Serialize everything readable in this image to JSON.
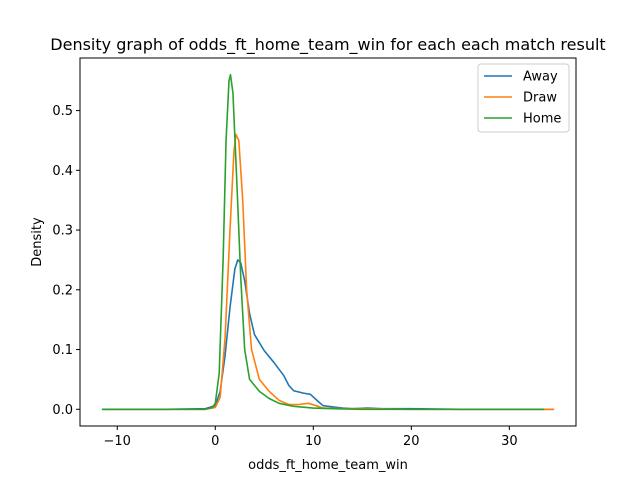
{
  "chart_data": {
    "type": "line",
    "title": "Density graph of odds_ft_home_team_win for each each match result",
    "xlabel": "odds_ft_home_team_win",
    "ylabel": "Density",
    "xlim": [
      -13.8,
      36.8
    ],
    "ylim": [
      -0.028,
      0.588
    ],
    "xticks": [
      -10,
      0,
      10,
      20,
      30
    ],
    "yticks": [
      0.0,
      0.1,
      0.2,
      0.3,
      0.4,
      0.5
    ],
    "xtick_labels": [
      "−10",
      "0",
      "10",
      "20",
      "30"
    ],
    "ytick_labels": [
      "0.0",
      "0.1",
      "0.2",
      "0.3",
      "0.4",
      "0.5"
    ],
    "grid": false,
    "legend_position": "top-right",
    "series": [
      {
        "name": "Away",
        "color": "#1f77b4",
        "points": [
          [
            -11.5,
            0.0
          ],
          [
            -5,
            0.0
          ],
          [
            -1,
            0.001
          ],
          [
            0,
            0.006
          ],
          [
            0.5,
            0.03
          ],
          [
            1,
            0.09
          ],
          [
            1.5,
            0.17
          ],
          [
            2,
            0.235
          ],
          [
            2.3,
            0.25
          ],
          [
            2.6,
            0.245
          ],
          [
            3,
            0.215
          ],
          [
            3.5,
            0.16
          ],
          [
            4,
            0.125
          ],
          [
            5,
            0.098
          ],
          [
            6,
            0.078
          ],
          [
            7,
            0.056
          ],
          [
            7.5,
            0.04
          ],
          [
            8,
            0.031
          ],
          [
            9,
            0.027
          ],
          [
            9.7,
            0.025
          ],
          [
            10.5,
            0.013
          ],
          [
            11,
            0.006
          ],
          [
            12,
            0.004
          ],
          [
            13,
            0.002
          ],
          [
            14,
            0.001
          ],
          [
            15.5,
            0.002
          ],
          [
            17,
            0.001
          ],
          [
            20,
            0.001
          ],
          [
            25,
            0.0
          ],
          [
            30,
            0.0
          ],
          [
            34.5,
            0.0
          ]
        ]
      },
      {
        "name": "Draw",
        "color": "#ff7f0e",
        "points": [
          [
            -11.5,
            0.0
          ],
          [
            -5,
            0.0
          ],
          [
            -1,
            0.0
          ],
          [
            0,
            0.003
          ],
          [
            0.5,
            0.02
          ],
          [
            1,
            0.12
          ],
          [
            1.5,
            0.3
          ],
          [
            1.9,
            0.43
          ],
          [
            2.1,
            0.46
          ],
          [
            2.4,
            0.45
          ],
          [
            2.8,
            0.35
          ],
          [
            3.2,
            0.2
          ],
          [
            3.7,
            0.1
          ],
          [
            4.5,
            0.05
          ],
          [
            5.5,
            0.03
          ],
          [
            6.5,
            0.015
          ],
          [
            7.5,
            0.008
          ],
          [
            8.5,
            0.008
          ],
          [
            9.5,
            0.01
          ],
          [
            10.3,
            0.006
          ],
          [
            11,
            0.002
          ],
          [
            13,
            0.001
          ],
          [
            15,
            0.001
          ],
          [
            20,
            0.0
          ],
          [
            25,
            0.0
          ],
          [
            30,
            0.0
          ],
          [
            34.5,
            0.0
          ]
        ]
      },
      {
        "name": "Home",
        "color": "#2ca02c",
        "points": [
          [
            -11.5,
            0.0
          ],
          [
            -5,
            0.0
          ],
          [
            -1,
            0.0
          ],
          [
            -0.3,
            0.003
          ],
          [
            0,
            0.01
          ],
          [
            0.4,
            0.06
          ],
          [
            0.8,
            0.25
          ],
          [
            1.1,
            0.45
          ],
          [
            1.4,
            0.55
          ],
          [
            1.55,
            0.56
          ],
          [
            1.8,
            0.53
          ],
          [
            2.2,
            0.38
          ],
          [
            2.6,
            0.22
          ],
          [
            3,
            0.1
          ],
          [
            3.5,
            0.05
          ],
          [
            4.5,
            0.03
          ],
          [
            5.5,
            0.018
          ],
          [
            6.5,
            0.01
          ],
          [
            8,
            0.005
          ],
          [
            10,
            0.002
          ],
          [
            12,
            0.001
          ],
          [
            15,
            0.0
          ],
          [
            20,
            0.0
          ],
          [
            25,
            0.0
          ],
          [
            30,
            0.0
          ],
          [
            33.5,
            0.0
          ]
        ]
      }
    ]
  }
}
